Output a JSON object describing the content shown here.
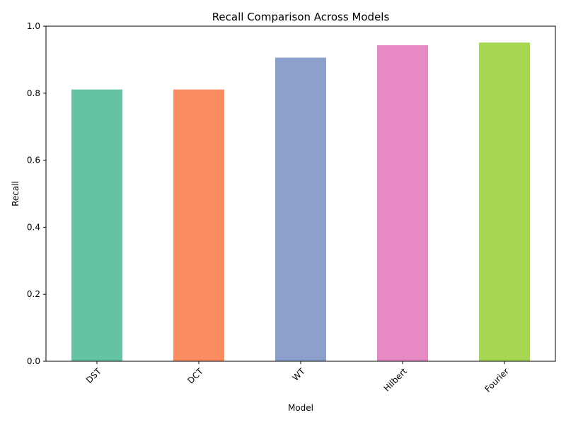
{
  "chart_data": {
    "type": "bar",
    "title": "Recall Comparison Across Models",
    "xlabel": "Model",
    "ylabel": "Recall",
    "categories": [
      "DST",
      "DCT",
      "WT",
      "Hilbert",
      "Fourier"
    ],
    "values": [
      0.811,
      0.811,
      0.906,
      0.943,
      0.951
    ],
    "colors": [
      "#66c2a5",
      "#fc8d62",
      "#8da0cb",
      "#e78ac3",
      "#a6d854"
    ],
    "ylim": [
      0,
      1.0
    ],
    "yticks": [
      0.0,
      0.2,
      0.4,
      0.6,
      0.8,
      1.0
    ],
    "ytick_labels": [
      "0.0",
      "0.2",
      "0.4",
      "0.6",
      "0.8",
      "1.0"
    ],
    "xtick_rotation_deg": 45,
    "grid": false,
    "legend": "none"
  }
}
